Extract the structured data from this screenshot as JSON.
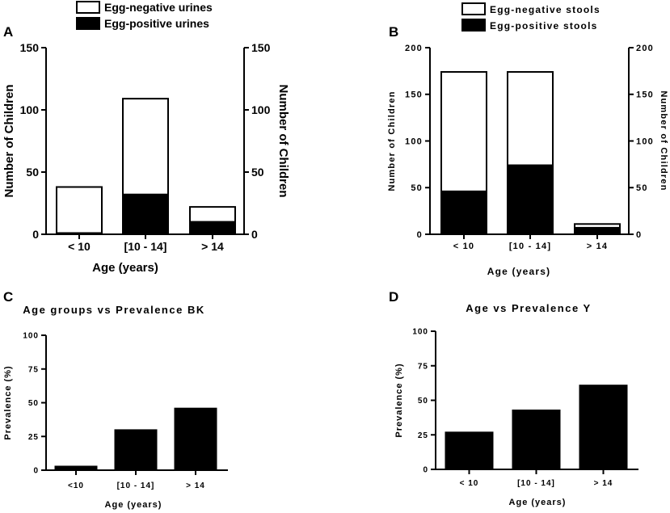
{
  "chart_data": [
    {
      "panel": "A",
      "type": "bar",
      "stacked": true,
      "title": "",
      "categories": [
        "< 10",
        "[10 - 14]",
        "> 14"
      ],
      "series": [
        {
          "name": "Egg-positive urines",
          "color": "#000000",
          "values": [
            1,
            32,
            10
          ]
        },
        {
          "name": "Egg-negative urines",
          "color": "#ffffff",
          "values": [
            37,
            77,
            12
          ]
        }
      ],
      "xlabel": "Age (years)",
      "ylabel": "Number of Children",
      "ylabel_right": "Number of Children",
      "ylim": [
        0,
        150
      ],
      "yticks": [
        "0",
        "50",
        "100",
        "150"
      ],
      "legend": "top"
    },
    {
      "panel": "B",
      "type": "bar",
      "stacked": true,
      "title": "",
      "categories": [
        "< 10",
        "[10 - 14]",
        "> 14"
      ],
      "series": [
        {
          "name": "Egg-positive stools",
          "color": "#000000",
          "values": [
            46,
            74,
            7
          ]
        },
        {
          "name": "Egg-negative stools",
          "color": "#ffffff",
          "values": [
            128,
            100,
            4
          ]
        }
      ],
      "xlabel": "Age (years)",
      "ylabel": "Number of Children",
      "ylabel_right": "Number of Children",
      "ylim": [
        0,
        200
      ],
      "yticks": [
        "0",
        "50",
        "100",
        "150",
        "200"
      ],
      "legend": "top"
    },
    {
      "panel": "C",
      "type": "bar",
      "title": "Age groups vs Prevalence BK",
      "categories": [
        "<10",
        "[10 - 14]",
        "> 14"
      ],
      "values": [
        3,
        30,
        46
      ],
      "xlabel": "Age (years)",
      "ylabel": "Prevalence (%)",
      "ylim": [
        0,
        100
      ],
      "yticks": [
        "0",
        "25",
        "50",
        "75",
        "100"
      ]
    },
    {
      "panel": "D",
      "type": "bar",
      "title": "Age vs Prevalence Y",
      "categories": [
        "< 10",
        "[10 - 14]",
        "> 14"
      ],
      "values": [
        27,
        43,
        61
      ],
      "xlabel": "Age (years)",
      "ylabel": "Prevalence (%)",
      "ylim": [
        0,
        100
      ],
      "yticks": [
        "0",
        "25",
        "50",
        "75",
        "100"
      ]
    }
  ]
}
